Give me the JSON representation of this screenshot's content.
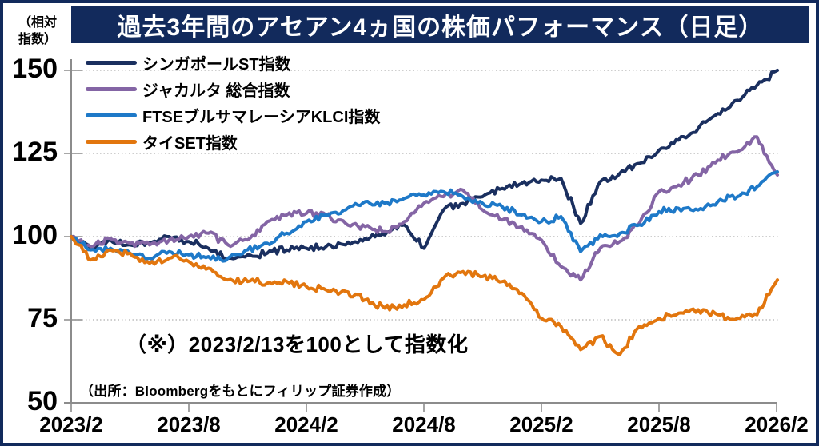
{
  "title": "過去3年間のアセアン4ヵ国の株価パフォーマンス（日足）",
  "note": "（※）2023/2/13を100として指数化",
  "source": "（出所：Bloombergをもとにフィリップ証券作成）",
  "y_axis": {
    "unit_label": "（相対指数）",
    "unit_label_line1": "（相対",
    "unit_label_line2": "指数）",
    "ticks": [
      150,
      125,
      100,
      75,
      50
    ]
  },
  "x_axis": {
    "ticks": [
      "2023/2",
      "2023/8",
      "2024/2",
      "2024/8",
      "2025/2",
      "2025/8",
      "2026/2"
    ]
  },
  "colors": {
    "frame_border": "#122a5c",
    "title_background": "#122a5c",
    "title_text": "#ffffff",
    "axis": "#8c8c8c",
    "gridline": "#b0b0b0",
    "singapore_sti": "#1a2f5f",
    "jakarta_composite": "#8465a5",
    "ftse_klci": "#1e79c8",
    "thai_set": "#e2760e"
  },
  "chart_data": {
    "type": "line",
    "title": "過去3年間のアセアン4ヵ国の株価パフォーマンス（日足）",
    "xlabel": "",
    "ylabel": "相対指数（2023/2/13=100）",
    "ylim": [
      50,
      150
    ],
    "grid": "horizontal-dotted",
    "legend_position": "top-left",
    "x": [
      "2023/2",
      "2023/3",
      "2023/4",
      "2023/5",
      "2023/6",
      "2023/7",
      "2023/8",
      "2023/9",
      "2023/10",
      "2023/11",
      "2023/12",
      "2024/1",
      "2024/2",
      "2024/3",
      "2024/4",
      "2024/5",
      "2024/6",
      "2024/7",
      "2024/8",
      "2024/9",
      "2024/10",
      "2024/11",
      "2024/12",
      "2025/1",
      "2025/2",
      "2025/3",
      "2025/4",
      "2025/5",
      "2025/6",
      "2025/7",
      "2025/8",
      "2025/9",
      "2025/10",
      "2025/11",
      "2025/12",
      "2026/1",
      "2026/2"
    ],
    "series": [
      {
        "name": "シンガポールST指数",
        "color": "#1a2f5f",
        "values": [
          100,
          96.5,
          99,
          97.5,
          98,
          100,
          98.5,
          96.5,
          93.5,
          94.5,
          95,
          96,
          96.5,
          97,
          97.5,
          99.5,
          100.5,
          103.5,
          96.5,
          108,
          110,
          112,
          114.5,
          116,
          117,
          117.5,
          104,
          116.5,
          119,
          122,
          126,
          129,
          132.5,
          137,
          141,
          145.5,
          150
        ]
      },
      {
        "name": "ジャカルタ 総合指数",
        "color": "#8465a5",
        "values": [
          100,
          97,
          99.5,
          98,
          97.5,
          99,
          100,
          101,
          97.5,
          99,
          104.5,
          106.5,
          107,
          106.5,
          104,
          103,
          101.5,
          104.5,
          110,
          112,
          114,
          108,
          105,
          103,
          99,
          91,
          87,
          96.5,
          98.5,
          104,
          113.5,
          115.5,
          118.5,
          123,
          125.5,
          130,
          118.5
        ]
      },
      {
        "name": "FTSEブルサマレーシアKLCI指数",
        "color": "#1e79c8",
        "values": [
          100,
          96,
          96.5,
          95,
          93.5,
          95.5,
          94.5,
          94,
          93.5,
          96,
          98,
          101,
          104.5,
          106.5,
          108,
          110.5,
          110,
          111.5,
          112.5,
          113.5,
          112,
          110,
          109,
          106.5,
          104.5,
          106,
          95.5,
          100.5,
          101,
          103.5,
          107.5,
          108.5,
          108,
          110.5,
          112,
          115,
          119.5
        ]
      },
      {
        "name": "タイSET指数",
        "color": "#e2760e",
        "values": [
          100,
          93,
          96,
          95,
          92,
          93.5,
          92.5,
          90.5,
          87,
          86.5,
          86,
          86.5,
          85,
          84,
          83.5,
          81,
          78.5,
          79.5,
          81,
          87.5,
          89.5,
          88,
          86.5,
          83,
          75.5,
          73,
          66,
          70,
          64.5,
          73,
          75.5,
          77,
          78,
          76.5,
          75.5,
          76.5,
          87
        ]
      }
    ]
  }
}
